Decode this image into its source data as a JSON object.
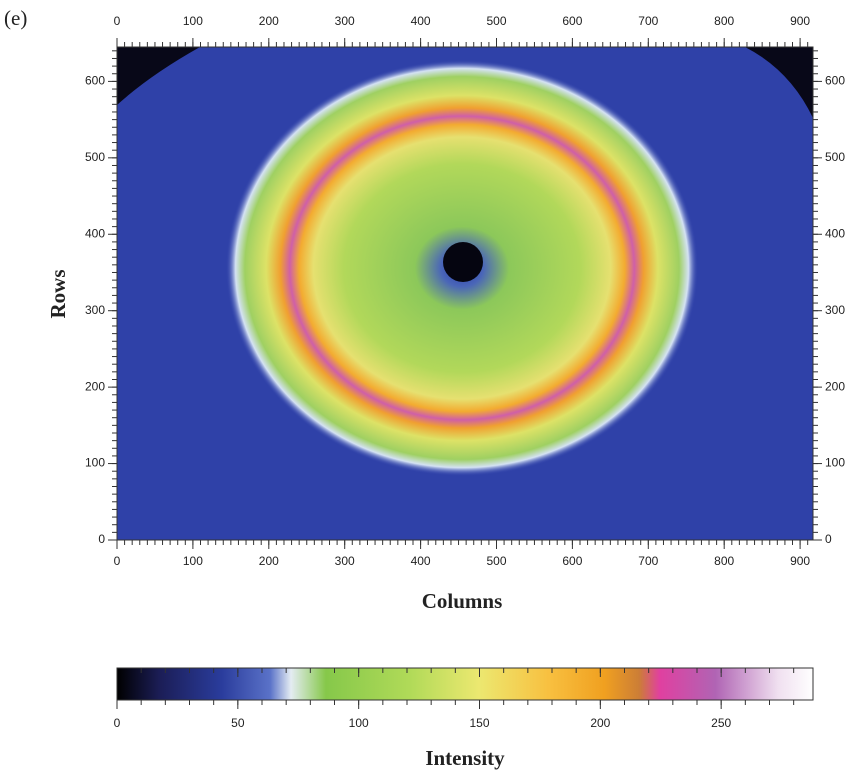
{
  "panel_label": "(e)",
  "chart_data": {
    "type": "heatmap",
    "xlabel": "Columns",
    "ylabel": "Rows",
    "xlim": [
      0,
      917
    ],
    "ylim": [
      0,
      645
    ],
    "xticks": [
      0,
      100,
      200,
      300,
      400,
      500,
      600,
      700,
      800,
      900
    ],
    "yticks": [
      0,
      100,
      200,
      300,
      400,
      500,
      600
    ],
    "minor_tick_interval": 10,
    "colorbar": {
      "label": "Intensity",
      "lim": [
        0,
        288
      ],
      "ticks": [
        0,
        50,
        100,
        150,
        200,
        250
      ]
    }
  }
}
